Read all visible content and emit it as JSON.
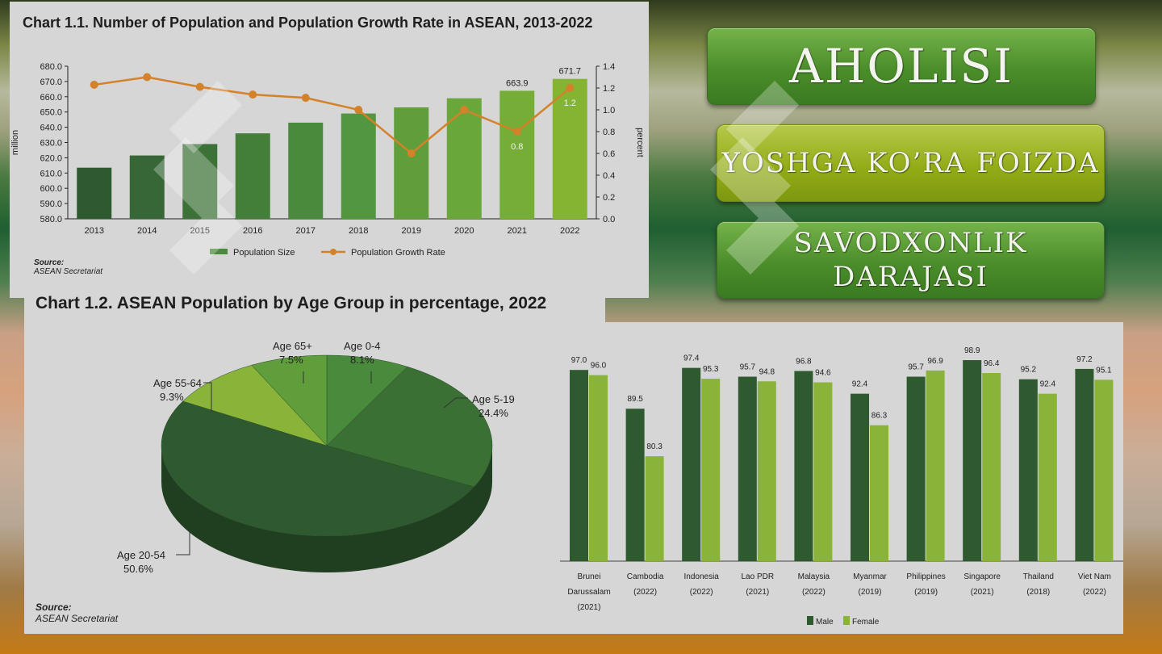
{
  "buttons": {
    "aholisi": "AHOLISI",
    "yoshga": "YOSHGA KO’RA FOIZDA",
    "savod_line1": "SAVODXONLIK",
    "savod_line2": "DARAJASI"
  },
  "colors": {
    "bar_fill": [
      "#2f5a2f",
      "#376737",
      "#3c7237",
      "#447f3a",
      "#4a8a3c",
      "#539640",
      "#5f9e3b",
      "#6aa73a",
      "#76ad36",
      "#84b532"
    ],
    "line": "#d3822a",
    "male": "#2f5a2f",
    "female": "#8ab33a",
    "pie": [
      "#4a8a3c",
      "#3a7034",
      "#2f5a2f",
      "#8ab33a",
      "#5f9e3b"
    ]
  },
  "chart1": {
    "title": "Chart 1.1. Number of Population and Population Growth Rate in ASEAN, 2013-2022",
    "source_label": "Source:",
    "source_text": "ASEAN Secretariat"
  },
  "chart2": {
    "title": "Chart 1.2. ASEAN Population by Age Group in percentage, 2022",
    "source_label": "Source:",
    "source_text": "ASEAN Secretariat"
  },
  "chart_data": [
    {
      "type": "bar",
      "title": "Chart 1.1. Number of Population and Population Growth Rate in ASEAN, 2013-2022",
      "categories": [
        "2013",
        "2014",
        "2015",
        "2016",
        "2017",
        "2018",
        "2019",
        "2020",
        "2021",
        "2022"
      ],
      "series": [
        {
          "name": "Population Size",
          "type": "bar",
          "axis": "left",
          "values": [
            613.5,
            621.5,
            629.0,
            636.0,
            643.0,
            649.0,
            653.0,
            659.0,
            663.9,
            671.7
          ]
        },
        {
          "name": "Population Growth Rate",
          "type": "line",
          "axis": "right",
          "values": [
            1.23,
            1.3,
            1.21,
            1.14,
            1.11,
            1.0,
            0.6,
            1.0,
            0.8,
            1.2
          ]
        }
      ],
      "data_labels": {
        "bars": {
          "8": "663.9",
          "9": "671.7"
        },
        "line": {
          "8": "0.8",
          "9": "1.2"
        }
      },
      "ylabel": "million",
      "ylabel_right": "percent",
      "ylim": [
        580,
        680
      ],
      "yticks": [
        "580.0",
        "590.0",
        "600.0",
        "610.0",
        "620.0",
        "630.0",
        "640.0",
        "650.0",
        "660.0",
        "670.0",
        "680.0"
      ],
      "ylim_right": [
        0,
        1.4
      ],
      "yticks_right": [
        "0.0",
        "0.2",
        "0.4",
        "0.6",
        "0.8",
        "1.0",
        "1.2",
        "1.4"
      ],
      "legend": "bottom"
    },
    {
      "type": "pie",
      "title": "Chart 1.2. ASEAN Population by Age Group in percentage, 2022",
      "slices": [
        {
          "label": "Age 0-4",
          "value": 8.1,
          "text": "8.1%"
        },
        {
          "label": "Age 5-19",
          "value": 24.4,
          "text": "24.4%"
        },
        {
          "label": "Age 20-54",
          "value": 50.6,
          "text": "50.6%"
        },
        {
          "label": "Age 55-64",
          "value": 9.3,
          "text": "9.3%"
        },
        {
          "label": "Age 65+",
          "value": 7.5,
          "text": "7.5%"
        }
      ]
    },
    {
      "type": "bar",
      "categories": [
        [
          "Brunei",
          "Darussalam",
          "(2021)"
        ],
        [
          "Cambodia",
          "(2022)"
        ],
        [
          "Indonesia",
          "(2022)"
        ],
        [
          "Lao PDR",
          "(2021)"
        ],
        [
          "Malaysia",
          "(2022)"
        ],
        [
          "Myanmar",
          "(2019)"
        ],
        [
          "Philippines",
          "(2019)"
        ],
        [
          "Singapore",
          "(2021)"
        ],
        [
          "Thailand",
          "(2018)"
        ],
        [
          "Viet Nam",
          "(2022)"
        ]
      ],
      "series": [
        {
          "name": "Male",
          "values": [
            97.0,
            89.5,
            97.4,
            95.7,
            96.8,
            92.4,
            95.7,
            98.9,
            95.2,
            97.2
          ],
          "labels": [
            "97.0",
            "89.5",
            "97.4",
            "95.7",
            "96.8",
            "92.4",
            "95.7",
            "98.9",
            "95.2",
            "97.2"
          ]
        },
        {
          "name": "Female",
          "values": [
            96.0,
            80.3,
            95.3,
            94.8,
            94.6,
            86.3,
            96.9,
            96.4,
            92.4,
            95.1
          ],
          "labels": [
            "96.0",
            "80.3",
            "95.3",
            "94.8",
            "94.6",
            "86.3",
            "96.9",
            "96.4",
            "92.4",
            "95.1"
          ]
        }
      ],
      "legend": "bottom-right"
    }
  ]
}
